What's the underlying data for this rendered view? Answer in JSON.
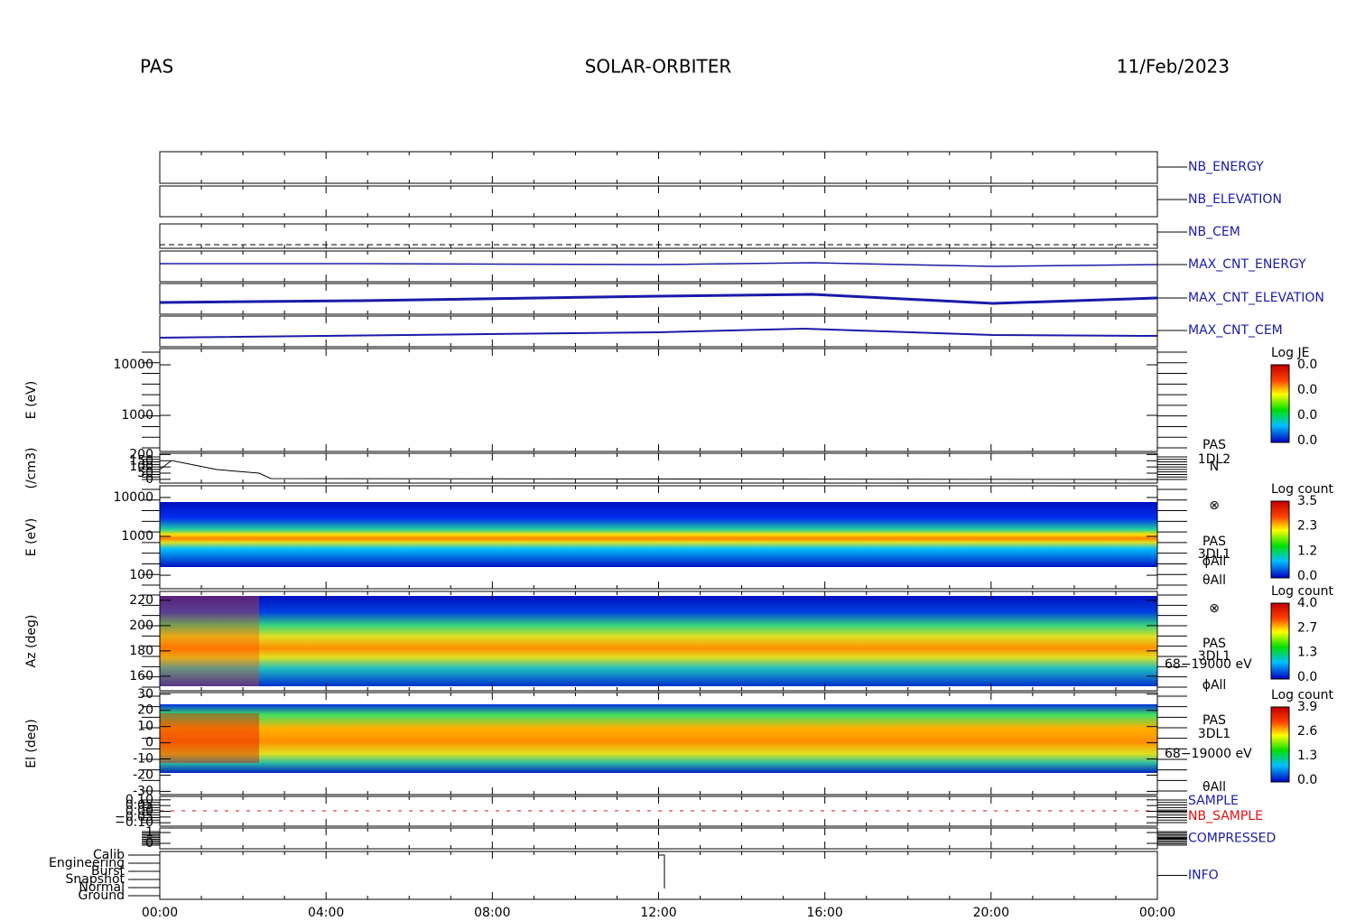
{
  "header": {
    "instrument": "PAS",
    "mission": "SOLAR-ORBITER",
    "date": "11/Feb/2023"
  },
  "x_axis": {
    "ticks": [
      "00:00",
      "04:00",
      "08:00",
      "12:00",
      "16:00",
      "20:00",
      "00:00"
    ]
  },
  "panels": [
    {
      "right_labels": [
        "NB_ENERGY"
      ]
    },
    {
      "right_labels": [
        "NB_ELEVATION"
      ]
    },
    {
      "right_labels": [
        "NB_CEM"
      ]
    },
    {
      "right_labels": [
        "MAX_CNT_ENERGY"
      ]
    },
    {
      "right_labels": [
        "MAX_CNT_ELEVATION"
      ]
    },
    {
      "right_labels": [
        "MAX_CNT_CEM"
      ]
    },
    {
      "ylabel": "E (eV)",
      "log": true,
      "ylim": [
        193,
        21000
      ],
      "yticks": [
        1000,
        10000
      ],
      "colorbar": {
        "title": "Log JE",
        "labels": [
          "0.0",
          "0.0",
          "0.0",
          "0.0"
        ]
      }
    },
    {
      "ylabel": "(/cm3)",
      "ylim": [
        -30,
        210
      ],
      "yticks": [
        0,
        50,
        100,
        150,
        200
      ],
      "side_labels": [
        "PAS",
        "1DL2",
        "N"
      ]
    },
    {
      "ylabel": "E (eV)",
      "log": true,
      "ylim": [
        45,
        20000
      ],
      "yticks": [
        100,
        1000,
        10000
      ],
      "side_labels": [
        "⊗",
        "PAS",
        "3DL1",
        "ϕAll",
        "θAll"
      ],
      "colorbar": {
        "title": "Log count",
        "labels": [
          "3.5",
          "2.3",
          "1.2",
          "0.0"
        ]
      }
    },
    {
      "ylabel": "Az (deg)",
      "ylim": [
        148.5,
        227
      ],
      "yticks": [
        160,
        180,
        200,
        220
      ],
      "side_labels": [
        "⊗",
        "PAS",
        "3DL1",
        "68−19000 eV",
        "ϕAll"
      ],
      "colorbar": {
        "title": "Log count",
        "labels": [
          "4.0",
          "2.7",
          "1.3",
          "0.0"
        ]
      }
    },
    {
      "ylabel": "El (deg)",
      "ylim": [
        -32,
        31
      ],
      "yticks": [
        -30,
        -20,
        -10,
        0,
        10,
        20,
        30
      ],
      "side_labels": [
        "PAS",
        "3DL1",
        "68−19000 eV",
        "θAll"
      ],
      "colorbar": {
        "title": "Log count",
        "labels": [
          "3.9",
          "2.6",
          "1.3",
          "0.0"
        ]
      }
    },
    {
      "right_labels": [
        "SAMPLE",
        "NB_SAMPLE"
      ],
      "ylim": [
        -0.13,
        0.13
      ],
      "yticks": [
        {
          "value": -0.1,
          "label": "−0.10"
        },
        {
          "value": -0.05,
          "label": "−0.05"
        },
        {
          "value": 0,
          "label": "0.00"
        },
        {
          "value": 0.05,
          "label": "0.05"
        },
        {
          "value": 0.1,
          "label": "0.10"
        }
      ]
    },
    {
      "right_labels": [
        "COMPRESSED"
      ],
      "ylim": [
        -0.5,
        1.42
      ],
      "yticks": [
        0,
        1
      ]
    },
    {
      "right_labels": [
        "INFO"
      ],
      "categories": [
        "Calib",
        "Engineering",
        "Burst",
        "Snapshot",
        "Normal",
        "Ground"
      ]
    }
  ]
}
